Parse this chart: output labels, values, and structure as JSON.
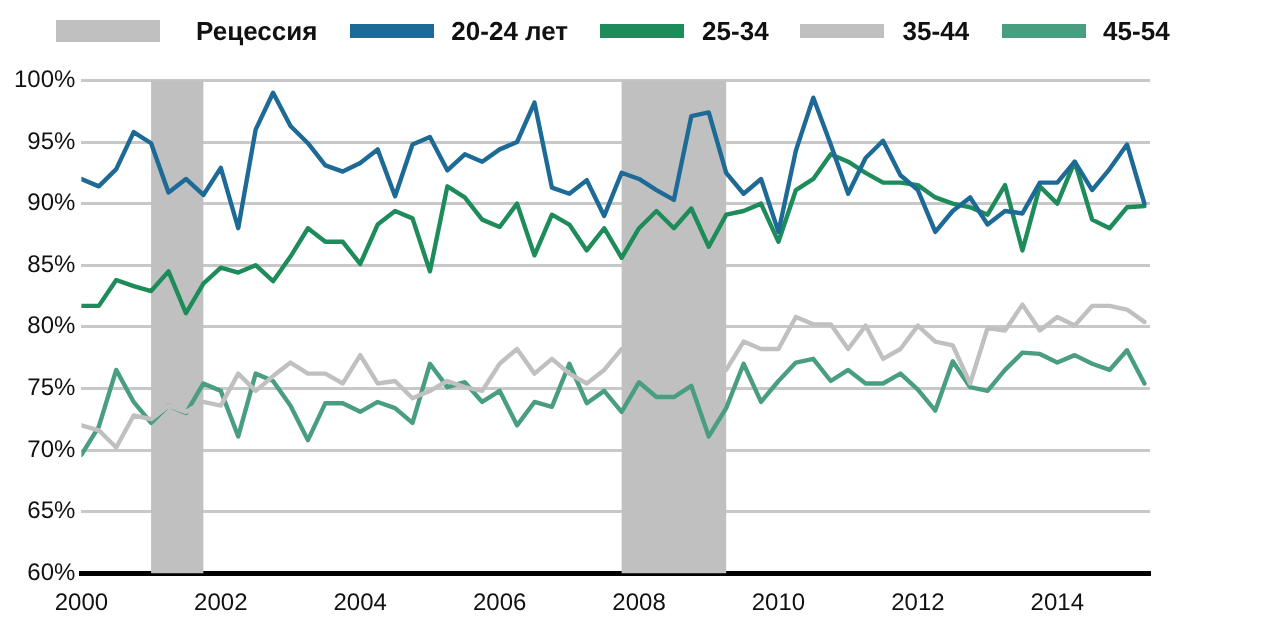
{
  "chart_data": {
    "type": "line",
    "x": [
      2000,
      2000.25,
      2000.5,
      2000.75,
      2001,
      2001.25,
      2001.5,
      2001.75,
      2002,
      2002.25,
      2002.5,
      2002.75,
      2003,
      2003.25,
      2003.5,
      2003.75,
      2004,
      2004.25,
      2004.5,
      2004.75,
      2005,
      2005.25,
      2005.5,
      2005.75,
      2006,
      2006.25,
      2006.5,
      2006.75,
      2007,
      2007.25,
      2007.5,
      2007.75,
      2008,
      2008.25,
      2008.5,
      2008.75,
      2009,
      2009.25,
      2009.5,
      2009.75,
      2010,
      2010.25,
      2010.5,
      2010.75,
      2011,
      2011.25,
      2011.5,
      2011.75,
      2012,
      2012.25,
      2012.5,
      2012.75,
      2013,
      2013.25,
      2013.5,
      2013.75,
      2014,
      2014.25,
      2014.5,
      2014.75,
      2015,
      2015.25
    ],
    "series": [
      {
        "name": "20-24 лет",
        "color": "#1d6a96",
        "values": [
          92.0,
          91.4,
          92.8,
          95.8,
          94.9,
          90.9,
          92.0,
          90.7,
          92.9,
          88.0,
          96.0,
          99.0,
          96.3,
          94.9,
          93.1,
          92.6,
          93.3,
          94.4,
          90.6,
          94.8,
          95.4,
          92.7,
          94.0,
          93.4,
          94.4,
          95.0,
          98.2,
          91.3,
          90.8,
          91.9,
          89.0,
          92.5,
          92.0,
          91.1,
          90.3,
          97.1,
          97.4,
          92.5,
          90.8,
          92.0,
          87.7,
          94.3,
          98.6,
          94.8,
          90.8,
          93.7,
          95.1,
          92.3,
          91.1,
          87.7,
          89.4,
          90.5,
          88.3,
          89.4,
          89.2,
          91.7,
          91.7,
          93.4,
          91.1,
          92.8,
          94.8,
          90.0
        ]
      },
      {
        "name": "25-34",
        "color": "#1e8c5a",
        "values": [
          81.7,
          81.7,
          83.8,
          83.3,
          82.9,
          84.5,
          81.1,
          83.5,
          84.8,
          84.4,
          85.0,
          83.7,
          85.7,
          88.0,
          86.9,
          86.9,
          85.1,
          88.3,
          89.4,
          88.8,
          84.5,
          91.4,
          90.5,
          88.7,
          88.1,
          90.0,
          85.8,
          89.1,
          88.3,
          86.2,
          88.0,
          85.6,
          88.0,
          89.4,
          88.0,
          89.6,
          86.5,
          89.1,
          89.4,
          90.0,
          86.9,
          91.1,
          92.0,
          94.0,
          93.4,
          92.5,
          91.7,
          91.7,
          91.5,
          90.5,
          90.0,
          89.7,
          89.1,
          91.5,
          86.2,
          91.4,
          90.0,
          93.4,
          88.7,
          88.0,
          89.7,
          89.8
        ]
      },
      {
        "name": "35-44",
        "color": "#c0c0c0",
        "values": [
          72.0,
          71.6,
          70.2,
          72.8,
          72.5,
          73.6,
          73.1,
          73.9,
          73.6,
          76.2,
          74.8,
          76.0,
          77.1,
          76.2,
          76.2,
          75.4,
          77.7,
          75.4,
          75.6,
          74.2,
          74.8,
          75.6,
          75.1,
          74.8,
          77.0,
          78.2,
          76.2,
          77.4,
          76.2,
          75.4,
          76.5,
          78.2,
          null,
          null,
          null,
          null,
          null,
          76.5,
          78.8,
          78.2,
          78.2,
          80.8,
          80.2,
          80.2,
          78.2,
          80.1,
          77.4,
          78.2,
          80.1,
          78.8,
          78.5,
          75.4,
          79.9,
          79.7,
          81.8,
          79.7,
          80.8,
          80.1,
          81.7,
          81.7,
          81.4,
          80.4
        ]
      },
      {
        "name": "45-54",
        "color": "#4a9e80",
        "values": [
          69.6,
          71.9,
          76.5,
          73.9,
          72.2,
          73.6,
          73.0,
          75.4,
          74.8,
          71.1,
          76.2,
          75.6,
          73.6,
          70.8,
          73.8,
          73.8,
          73.1,
          73.9,
          73.4,
          72.2,
          77.0,
          75.1,
          75.5,
          73.9,
          74.8,
          72.0,
          73.9,
          73.5,
          77.0,
          73.8,
          74.8,
          73.1,
          75.5,
          74.3,
          74.3,
          75.2,
          71.1,
          73.4,
          77.0,
          73.9,
          75.6,
          77.1,
          77.4,
          75.6,
          76.5,
          75.4,
          75.4,
          76.2,
          74.9,
          73.2,
          77.2,
          75.1,
          74.8,
          76.5,
          77.9,
          77.8,
          77.1,
          77.7,
          77.0,
          76.5,
          78.1,
          75.4
        ]
      }
    ],
    "bands": [
      {
        "axis": "x",
        "from": 2001,
        "to": 2001.75,
        "label": "Рецессия",
        "color": "#c0c0c0"
      },
      {
        "axis": "x",
        "from": 2007.75,
        "to": 2009.25,
        "color": "#c0c0c0"
      }
    ],
    "xlim": [
      2000,
      2015.33
    ],
    "xticks": [
      2000,
      2002,
      2004,
      2006,
      2008,
      2010,
      2012,
      2014
    ],
    "ylim": [
      60,
      100
    ],
    "yticks": [
      {
        "value": 60,
        "label": "60%"
      },
      {
        "value": 65,
        "label": "65%"
      },
      {
        "value": 70,
        "label": "70%"
      },
      {
        "value": 75,
        "label": "75%"
      },
      {
        "value": 80,
        "label": "80%"
      },
      {
        "value": 85,
        "label": "85%"
      },
      {
        "value": 90,
        "label": "90%"
      },
      {
        "value": 95,
        "label": "95%"
      },
      {
        "value": 100,
        "label": "100%"
      }
    ],
    "grid": "y",
    "legend": "top",
    "marker": "none"
  }
}
